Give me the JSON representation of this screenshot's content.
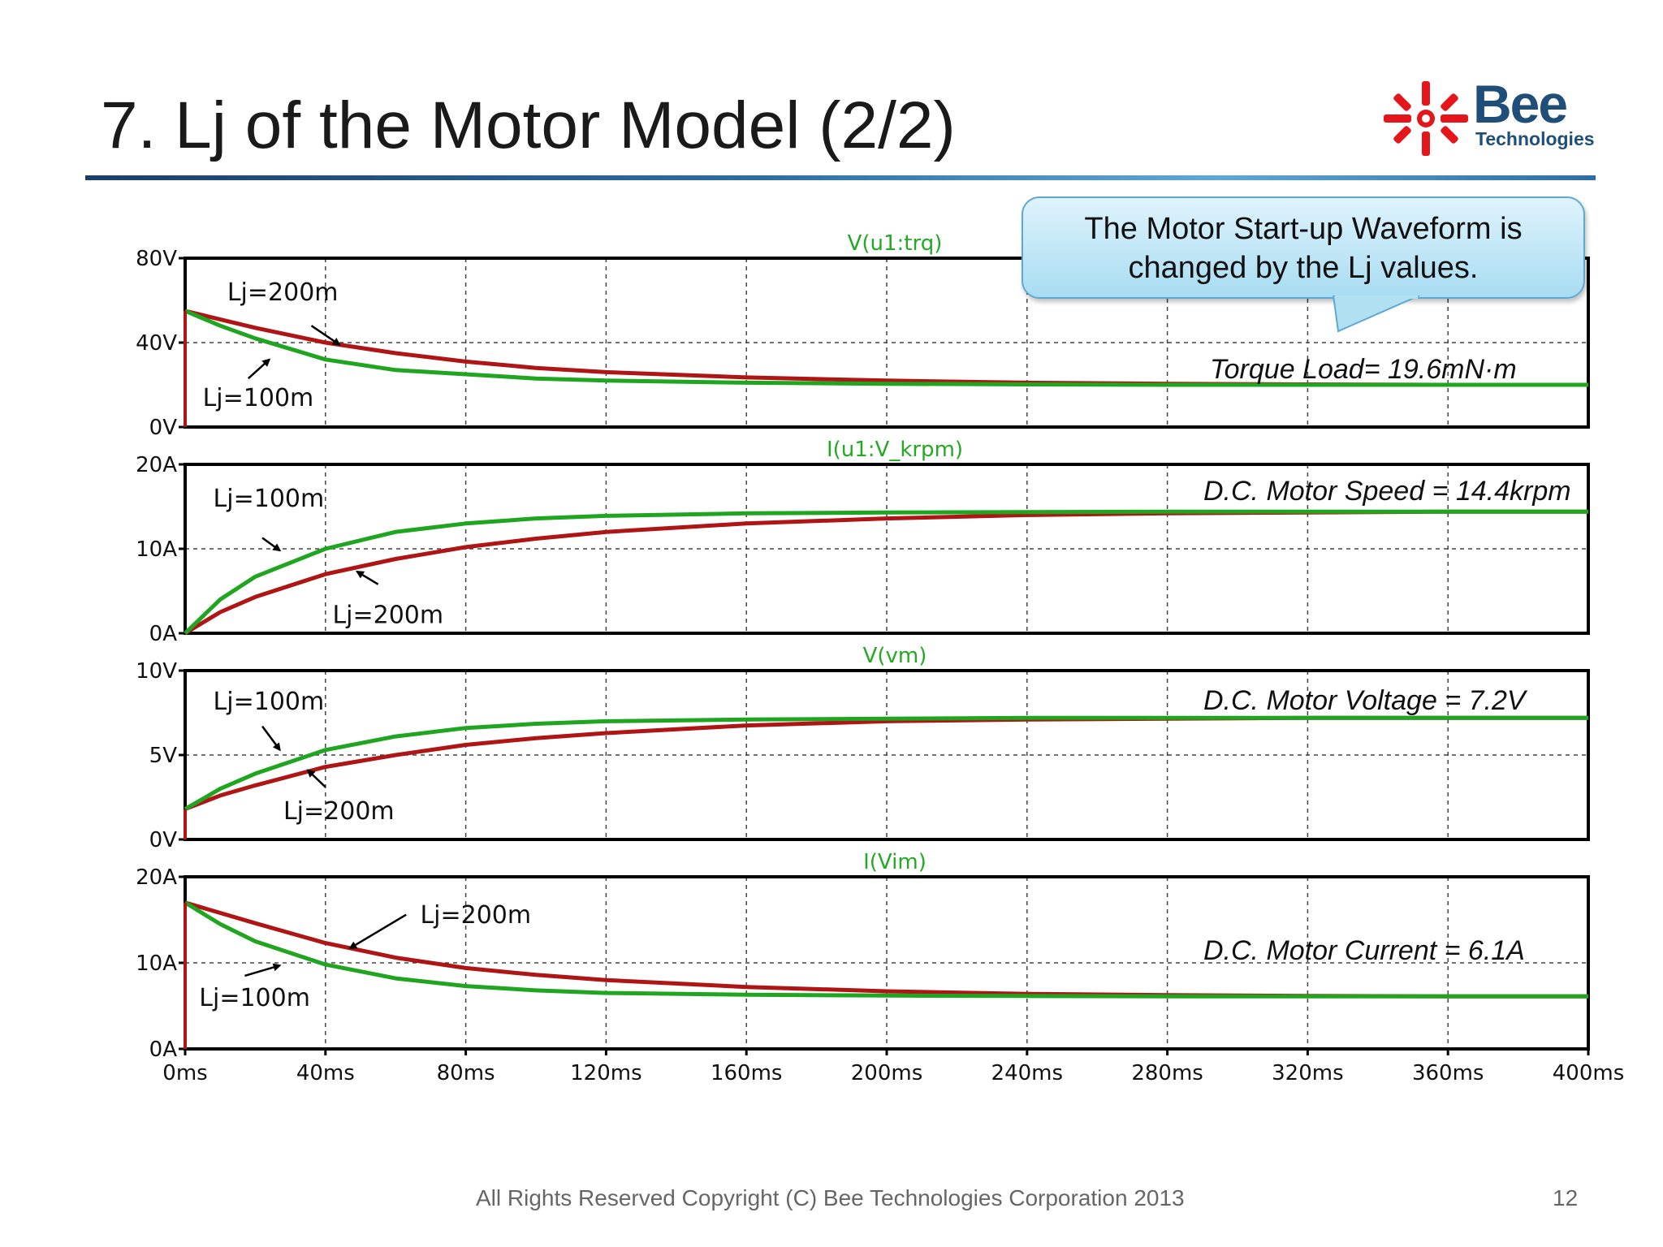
{
  "title": "7. Lj of the Motor Model (2/2)",
  "logo": {
    "name": "Bee",
    "sub": "Technologies",
    "mark": "bee-logo-icon"
  },
  "callout": {
    "line1": "The Motor Start-up Waveform is",
    "line2": "changed by the Lj values."
  },
  "footer": "All Rights Reserved Copyright (C) Bee Technologies Corporation 2013",
  "page_number": "12",
  "colors": {
    "lj100": "#1fa51f",
    "lj200": "#b01515",
    "trace_title": "#22aa22",
    "axis": "#000000"
  },
  "chart_data": [
    {
      "type": "line",
      "trace": "V(u1:trq)",
      "annotation": "Torque Load= 19.6mN·m",
      "xlim": [
        0,
        400
      ],
      "xticks": [
        "0ms",
        "40ms",
        "80ms",
        "120ms",
        "160ms",
        "200ms",
        "240ms",
        "280ms",
        "320ms",
        "360ms",
        "400ms"
      ],
      "ylim": [
        0,
        80
      ],
      "yticks": [
        {
          "v": 0,
          "label": "0V"
        },
        {
          "v": 40,
          "label": "40V"
        },
        {
          "v": 80,
          "label": "80V"
        }
      ],
      "x": [
        0,
        10,
        20,
        40,
        60,
        80,
        100,
        120,
        160,
        200,
        240,
        280,
        320,
        360,
        400
      ],
      "series": [
        {
          "name": "Lj=100m",
          "color": "#1fa51f",
          "values": [
            55,
            48,
            42,
            32,
            27,
            25,
            23,
            22,
            21,
            20.5,
            20.2,
            20,
            20,
            20,
            20
          ]
        },
        {
          "name": "Lj=200m",
          "color": "#b01515",
          "values": [
            55,
            51,
            47,
            40,
            35,
            31,
            28,
            26,
            23.5,
            22,
            21,
            20.5,
            20.2,
            20,
            20
          ]
        }
      ],
      "labels": [
        {
          "text": "Lj=200m",
          "x": 12,
          "y": 60,
          "ax": 36,
          "ay": 48,
          "atx": 44,
          "aty": 39
        },
        {
          "text": "Lj=100m",
          "x": 5,
          "y": 10,
          "ax": 18,
          "ay": 23,
          "atx": 24,
          "aty": 32
        }
      ]
    },
    {
      "type": "line",
      "trace": "I(u1:V_krpm)",
      "annotation": "D.C. Motor Speed = 14.4krpm",
      "xlim": [
        0,
        400
      ],
      "ylim": [
        0,
        20
      ],
      "yticks": [
        {
          "v": 0,
          "label": "0A"
        },
        {
          "v": 10,
          "label": "10A"
        },
        {
          "v": 20,
          "label": "20A"
        }
      ],
      "x": [
        0,
        10,
        20,
        40,
        60,
        80,
        100,
        120,
        160,
        200,
        240,
        280,
        320,
        360,
        400
      ],
      "series": [
        {
          "name": "Lj=100m",
          "color": "#1fa51f",
          "values": [
            0,
            4,
            6.7,
            10,
            12,
            13,
            13.6,
            13.9,
            14.2,
            14.3,
            14.35,
            14.4,
            14.4,
            14.4,
            14.4
          ]
        },
        {
          "name": "Lj=200m",
          "color": "#b01515",
          "values": [
            0,
            2.5,
            4.3,
            7,
            8.8,
            10.2,
            11.2,
            12,
            13,
            13.6,
            14,
            14.2,
            14.3,
            14.4,
            14.4
          ]
        }
      ],
      "labels": [
        {
          "text": "Lj=100m",
          "x": 8,
          "y": 15,
          "ax": 22,
          "ay": 11.3,
          "atx": 27,
          "aty": 9.8
        },
        {
          "text": "Lj=200m",
          "x": 42,
          "y": 1.2,
          "ax": 55,
          "ay": 5.8,
          "atx": 49,
          "aty": 7.3
        }
      ]
    },
    {
      "type": "line",
      "trace": "V(vm)",
      "annotation": "D.C. Motor Voltage = 7.2V",
      "xlim": [
        0,
        400
      ],
      "ylim": [
        0,
        10
      ],
      "yticks": [
        {
          "v": 0,
          "label": "0V"
        },
        {
          "v": 5,
          "label": "5V"
        },
        {
          "v": 10,
          "label": "10V"
        }
      ],
      "x": [
        0,
        10,
        20,
        40,
        60,
        80,
        100,
        120,
        160,
        200,
        240,
        280,
        320,
        360,
        400
      ],
      "series": [
        {
          "name": "Lj=100m",
          "color": "#1fa51f",
          "values": [
            1.8,
            3,
            3.9,
            5.3,
            6.1,
            6.6,
            6.85,
            7,
            7.1,
            7.15,
            7.2,
            7.2,
            7.2,
            7.2,
            7.2
          ]
        },
        {
          "name": "Lj=200m",
          "color": "#b01515",
          "values": [
            1.8,
            2.6,
            3.2,
            4.3,
            5,
            5.6,
            6,
            6.3,
            6.75,
            7,
            7.1,
            7.15,
            7.2,
            7.2,
            7.2
          ]
        }
      ],
      "labels": [
        {
          "text": "Lj=100m",
          "x": 8,
          "y": 7.7,
          "ax": 22,
          "ay": 6.7,
          "atx": 27,
          "aty": 5.3
        },
        {
          "text": "Lj=200m",
          "x": 28,
          "y": 1.2,
          "ax": 40,
          "ay": 3.1,
          "atx": 35,
          "aty": 4.1
        }
      ]
    },
    {
      "type": "line",
      "trace": "I(Vim)",
      "annotation": "D.C. Motor Current = 6.1A",
      "xlim": [
        0,
        400
      ],
      "ylim": [
        0,
        20
      ],
      "yticks": [
        {
          "v": 0,
          "label": "0A"
        },
        {
          "v": 10,
          "label": "10A"
        },
        {
          "v": 20,
          "label": "20A"
        }
      ],
      "x": [
        0,
        10,
        20,
        40,
        60,
        80,
        100,
        120,
        160,
        200,
        240,
        280,
        320,
        360,
        400
      ],
      "series": [
        {
          "name": "Lj=100m",
          "color": "#1fa51f",
          "values": [
            17,
            14.5,
            12.5,
            9.8,
            8.2,
            7.3,
            6.8,
            6.5,
            6.3,
            6.2,
            6.15,
            6.1,
            6.1,
            6.1,
            6.1
          ]
        },
        {
          "name": "Lj=200m",
          "color": "#b01515",
          "values": [
            17,
            15.8,
            14.6,
            12.3,
            10.6,
            9.4,
            8.6,
            8,
            7.2,
            6.7,
            6.4,
            6.25,
            6.15,
            6.1,
            6.1
          ]
        }
      ],
      "labels": [
        {
          "text": "Lj=200m",
          "x": 67,
          "y": 14.6,
          "ax": 63,
          "ay": 15.6,
          "atx": 47,
          "aty": 11.7
        },
        {
          "text": "Lj=100m",
          "x": 4,
          "y": 5,
          "ax": 17,
          "ay": 8.5,
          "atx": 27,
          "aty": 9.7
        }
      ]
    }
  ]
}
